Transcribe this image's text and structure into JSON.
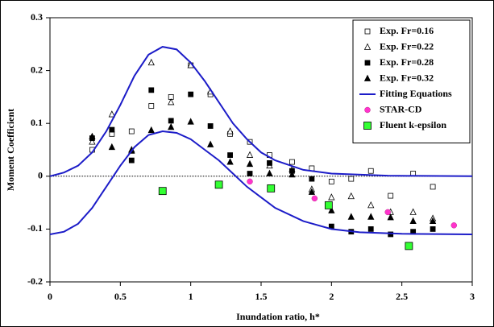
{
  "chart_data": {
    "type": "scatter",
    "x_label": "Inundation ratio, h*",
    "y_label": "Moment Coefficient",
    "xlim": [
      0,
      3
    ],
    "xticks": [
      0,
      0.5,
      1,
      1.5,
      2,
      2.5,
      3
    ],
    "ylim": [
      -0.2,
      0.3
    ],
    "yticks": [
      -0.2,
      -0.1,
      0,
      0.1,
      0.2,
      0.3
    ],
    "zero_line": true,
    "legend": "upper-right",
    "series": [
      {
        "name": "Exp. Fr=0.16",
        "marker": "square",
        "filled": false,
        "color": "#000000",
        "x": [
          0.3,
          0.44,
          0.58,
          0.72,
          0.86,
          1.0,
          1.14,
          1.28,
          1.42,
          1.56,
          1.72,
          1.86,
          2.0,
          2.14,
          2.28,
          2.42,
          2.58,
          2.72
        ],
        "values": [
          0.05,
          0.08,
          0.085,
          0.133,
          0.15,
          0.21,
          0.155,
          0.08,
          0.065,
          0.04,
          0.027,
          0.015,
          -0.01,
          -0.005,
          0.01,
          -0.037,
          0.005,
          -0.02
        ]
      },
      {
        "name": "Exp. Fr=0.22",
        "marker": "triangle",
        "filled": false,
        "color": "#000000",
        "x": [
          0.3,
          0.44,
          0.58,
          0.72,
          0.86,
          1.0,
          1.14,
          1.28,
          1.42,
          1.56,
          1.72,
          1.86,
          2.0,
          2.14,
          2.28,
          2.42,
          2.58,
          2.72
        ],
        "values": [
          0.065,
          0.117,
          0.05,
          0.215,
          0.14,
          0.21,
          0.16,
          0.085,
          0.04,
          0.02,
          0.013,
          -0.025,
          -0.04,
          -0.038,
          -0.055,
          -0.068,
          -0.068,
          -0.08
        ]
      },
      {
        "name": "Exp. Fr=0.28",
        "marker": "square",
        "filled": true,
        "color": "#000000",
        "x": [
          0.3,
          0.44,
          0.58,
          0.72,
          0.86,
          1.0,
          1.14,
          1.28,
          1.42,
          1.56,
          1.72,
          1.86,
          2.0,
          2.14,
          2.28,
          2.42,
          2.58,
          2.72
        ],
        "values": [
          0.072,
          0.088,
          0.03,
          0.163,
          0.105,
          0.155,
          0.095,
          0.04,
          0.005,
          0.025,
          0.01,
          -0.005,
          -0.095,
          -0.105,
          -0.1,
          -0.11,
          -0.105,
          -0.1
        ]
      },
      {
        "name": "Exp. Fr=0.32",
        "marker": "triangle",
        "filled": true,
        "color": "#000000",
        "x": [
          0.3,
          0.44,
          0.58,
          0.72,
          0.86,
          1.0,
          1.14,
          1.28,
          1.42,
          1.56,
          1.72,
          1.86,
          2.0,
          2.14,
          2.28,
          2.42,
          2.58,
          2.72
        ],
        "values": [
          0.075,
          0.055,
          0.048,
          0.087,
          0.093,
          0.103,
          0.06,
          0.027,
          0.023,
          0.005,
          0.003,
          -0.03,
          -0.065,
          -0.077,
          -0.077,
          -0.078,
          -0.085,
          -0.085
        ]
      },
      {
        "name": "Fitting Equations",
        "marker": "line",
        "color": "#1c1cc8",
        "x": [
          0,
          0.1,
          0.2,
          0.3,
          0.4,
          0.5,
          0.6,
          0.7,
          0.8,
          0.9,
          1.0,
          1.1,
          1.2,
          1.3,
          1.4,
          1.5,
          1.6,
          1.8,
          2.0,
          2.4,
          3.0,
          null,
          0,
          0.1,
          0.2,
          0.3,
          0.4,
          0.5,
          0.6,
          0.7,
          0.8,
          0.9,
          1.0,
          1.1,
          1.2,
          1.3,
          1.4,
          1.5,
          1.6,
          1.8,
          2.0,
          2.2,
          2.5,
          3.0
        ],
        "values": [
          0,
          0.007,
          0.02,
          0.045,
          0.085,
          0.135,
          0.19,
          0.23,
          0.245,
          0.24,
          0.215,
          0.18,
          0.14,
          0.1,
          0.07,
          0.045,
          0.03,
          0.012,
          0.005,
          0.001,
          0,
          null,
          -0.11,
          -0.105,
          -0.09,
          -0.06,
          -0.02,
          0.02,
          0.055,
          0.078,
          0.085,
          0.082,
          0.07,
          0.05,
          0.03,
          0.005,
          -0.02,
          -0.04,
          -0.06,
          -0.085,
          -0.1,
          -0.106,
          -0.109,
          -0.11
        ]
      },
      {
        "name": "STAR-CD",
        "marker": "circle",
        "filled": true,
        "color": "#ff33cc",
        "x": [
          1.42,
          1.88,
          2.4,
          2.87
        ],
        "values": [
          -0.01,
          -0.042,
          -0.068,
          -0.093
        ]
      },
      {
        "name": "Fluent k-epsilon",
        "marker": "square",
        "filled": true,
        "color": "#33ff33",
        "x": [
          0.8,
          1.2,
          1.57,
          1.98,
          2.55
        ],
        "values": [
          -0.028,
          -0.016,
          -0.023,
          -0.055,
          -0.132
        ]
      }
    ]
  }
}
